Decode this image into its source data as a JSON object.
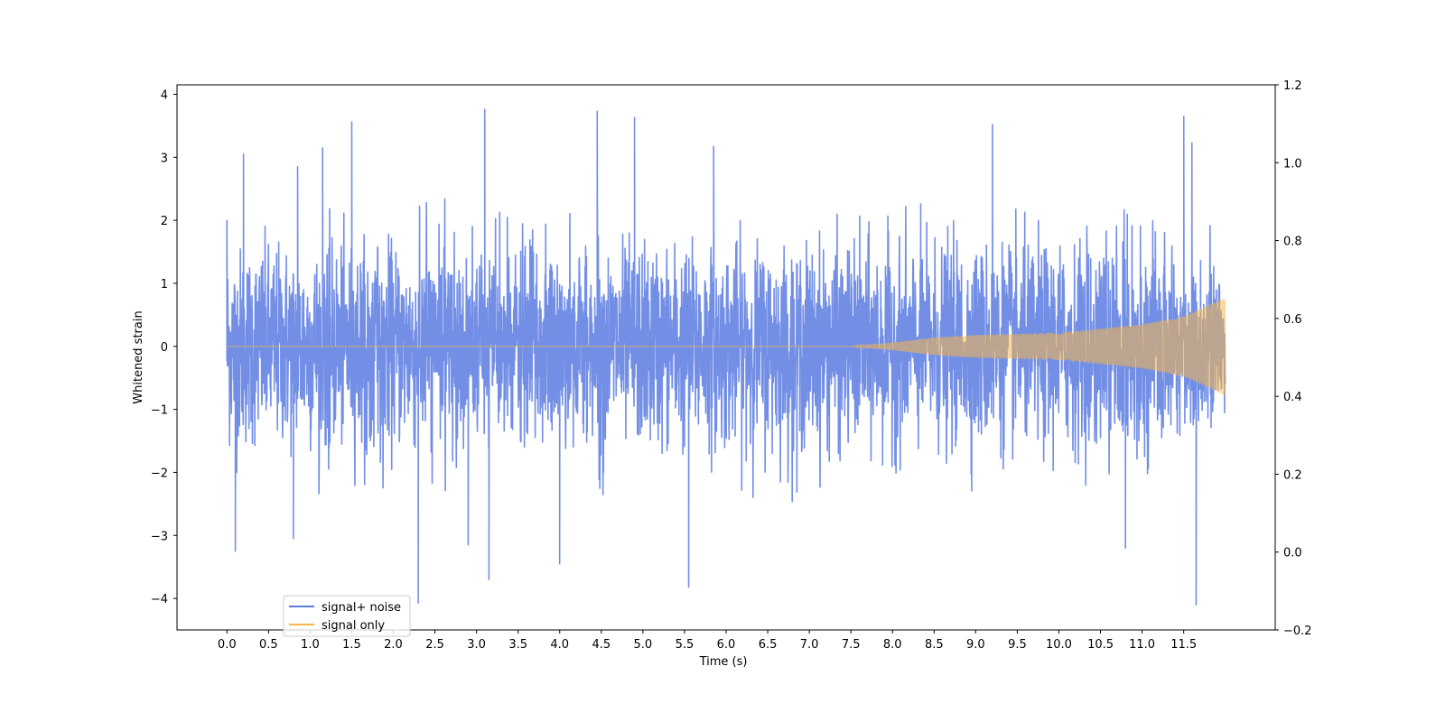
{
  "chart_data": {
    "type": "line",
    "xlabel": "Time (s)",
    "ylabel": "Whitened strain",
    "xlim": [
      -0.6,
      12.6
    ],
    "ylim": [
      -4.5,
      4.15
    ],
    "y2lim": [
      -0.2,
      1.2
    ],
    "x_ticks": [
      0.0,
      0.5,
      1.0,
      1.5,
      2.0,
      2.5,
      3.0,
      3.5,
      4.0,
      4.5,
      5.0,
      5.5,
      6.0,
      6.5,
      7.0,
      7.5,
      8.0,
      8.5,
      9.0,
      9.5,
      10.0,
      10.5,
      11.0,
      11.5
    ],
    "x_tick_labels": [
      "0.0",
      "0.5",
      "1.0",
      "1.5",
      "2.0",
      "2.5",
      "3.0",
      "3.5",
      "4.0",
      "4.5",
      "5.0",
      "5.5",
      "6.0",
      "6.5",
      "7.0",
      "7.5",
      "8.0",
      "8.5",
      "9.0",
      "9.5",
      "10.0",
      "10.5",
      "11.0",
      "11.5"
    ],
    "y_ticks": [
      -4,
      -3,
      -2,
      -1,
      0,
      1,
      2,
      3,
      4
    ],
    "y_tick_labels": [
      "−4",
      "−3",
      "−2",
      "−1",
      "0",
      "1",
      "2",
      "3",
      "4"
    ],
    "y2_ticks": [
      -0.2,
      0.0,
      0.2,
      0.4,
      0.6,
      0.8,
      1.0,
      1.2
    ],
    "y2_tick_labels": [
      "−0.2",
      "0.0",
      "0.2",
      "0.4",
      "0.6",
      "0.8",
      "1.0",
      "1.2"
    ],
    "grid": false,
    "legend_position": "lower-left",
    "series": [
      {
        "name": "signal+ noise",
        "color": "#5b7be0",
        "x_range": [
          0.0,
          12.0
        ],
        "typical_envelope": [
          -1.6,
          1.6
        ],
        "peaks": [
          {
            "x": 0.0,
            "y": 2.0
          },
          {
            "x": 0.2,
            "y": 3.05
          },
          {
            "x": 0.85,
            "y": 2.85
          },
          {
            "x": 1.15,
            "y": 3.15
          },
          {
            "x": 1.5,
            "y": 3.56
          },
          {
            "x": 3.1,
            "y": 3.76
          },
          {
            "x": 4.45,
            "y": 3.73
          },
          {
            "x": 4.9,
            "y": 3.63
          },
          {
            "x": 5.85,
            "y": 3.17
          },
          {
            "x": 9.2,
            "y": 3.52
          },
          {
            "x": 11.5,
            "y": 3.65
          },
          {
            "x": 11.6,
            "y": 3.23
          },
          {
            "x": 0.1,
            "y": -3.25
          },
          {
            "x": 0.8,
            "y": -3.05
          },
          {
            "x": 2.3,
            "y": -4.07
          },
          {
            "x": 2.9,
            "y": -3.15
          },
          {
            "x": 3.15,
            "y": -3.7
          },
          {
            "x": 4.0,
            "y": -3.45
          },
          {
            "x": 5.55,
            "y": -3.82
          },
          {
            "x": 10.8,
            "y": -3.2
          },
          {
            "x": 11.65,
            "y": -4.1
          }
        ]
      },
      {
        "name": "signal only",
        "color": "#f5b74a",
        "x_range": [
          0.0,
          12.0
        ],
        "envelope": [
          {
            "x": 0.0,
            "amplitude": 0.0
          },
          {
            "x": 7.5,
            "amplitude": 0.0
          },
          {
            "x": 8.0,
            "amplitude": 0.06
          },
          {
            "x": 8.5,
            "amplitude": 0.14
          },
          {
            "x": 9.0,
            "amplitude": 0.18
          },
          {
            "x": 10.0,
            "amplitude": 0.22
          },
          {
            "x": 11.0,
            "amplitude": 0.35
          },
          {
            "x": 11.5,
            "amplitude": 0.48
          },
          {
            "x": 12.0,
            "amplitude": 0.78
          }
        ]
      }
    ]
  }
}
